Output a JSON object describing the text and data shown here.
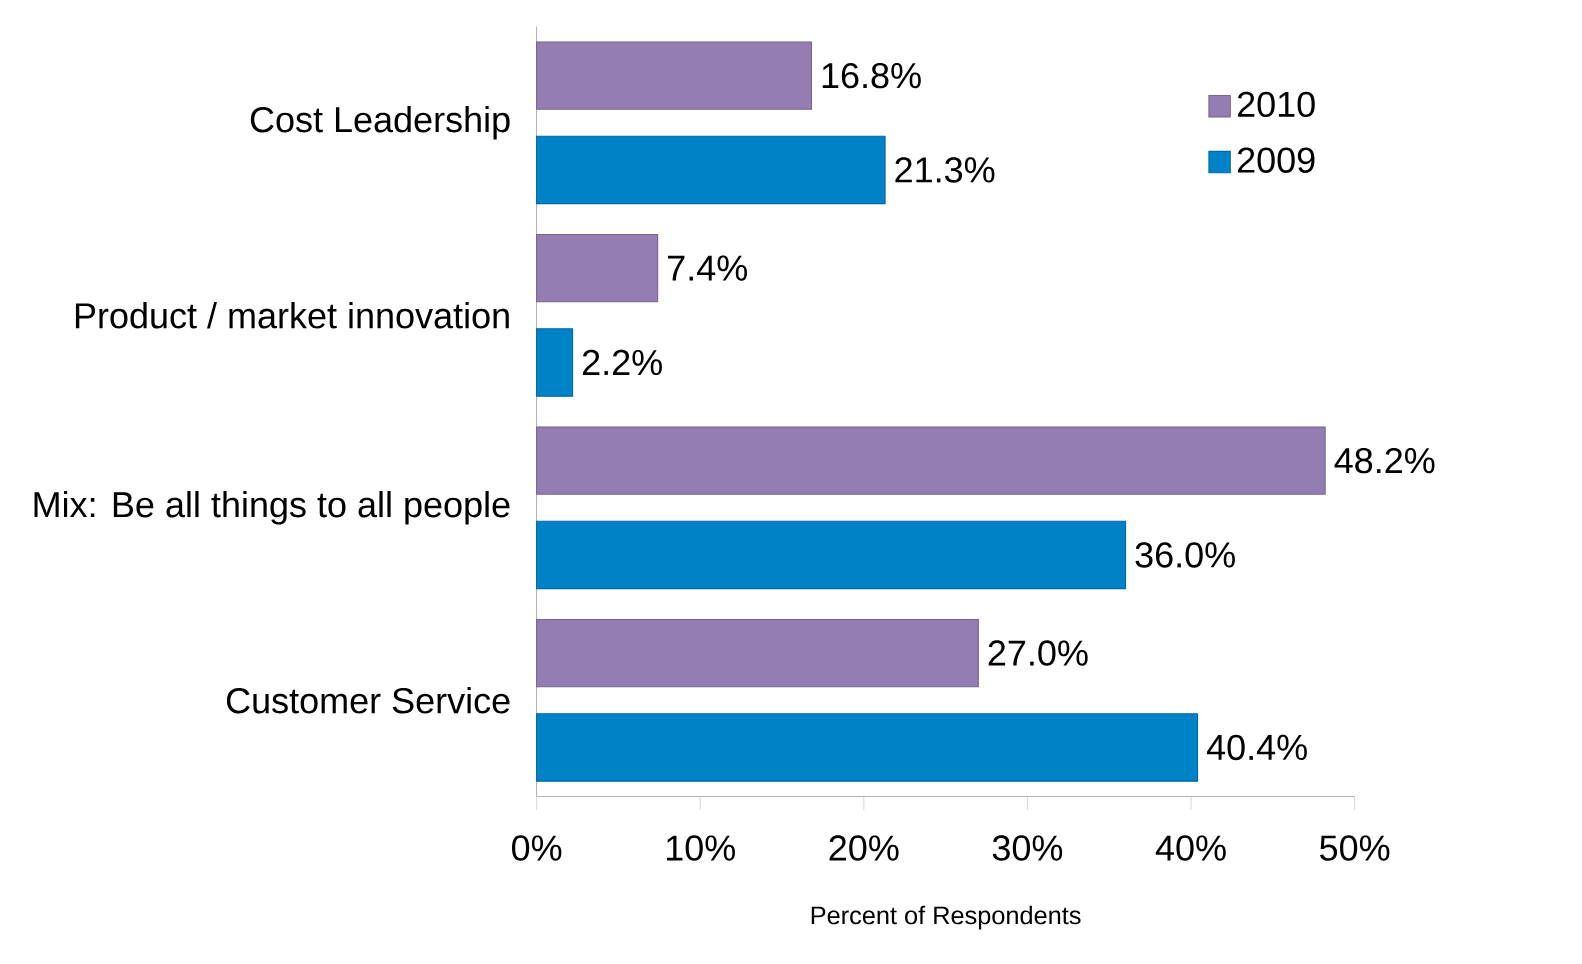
{
  "chart_data": {
    "type": "bar",
    "orientation": "horizontal",
    "xlabel": "Percent of Respondents",
    "categories": [
      "Cost Leadership",
      "Product / market innovation",
      "Mix:  Be all things to all people",
      "Customer Service"
    ],
    "series": [
      {
        "name": "2010",
        "color": "#937db2",
        "values": [
          16.8,
          7.4,
          48.2,
          27.0
        ],
        "value_labels": [
          "16.8%",
          "7.4%",
          "48.2%",
          "27.0%"
        ]
      },
      {
        "name": "2009",
        "color": "#0082c8",
        "values": [
          21.3,
          2.2,
          36.0,
          40.4
        ],
        "value_labels": [
          "21.3%",
          "2.2%",
          "36.0%",
          "40.4%"
        ]
      }
    ],
    "xlim": [
      0,
      50
    ],
    "xticks": [
      {
        "value": 0,
        "label": "0%"
      },
      {
        "value": 10,
        "label": "10%"
      },
      {
        "value": 20,
        "label": "20%"
      },
      {
        "value": 30,
        "label": "30%"
      },
      {
        "value": 40,
        "label": "40%"
      },
      {
        "value": 50,
        "label": "50%"
      }
    ],
    "legend": "top right",
    "grid": false
  }
}
